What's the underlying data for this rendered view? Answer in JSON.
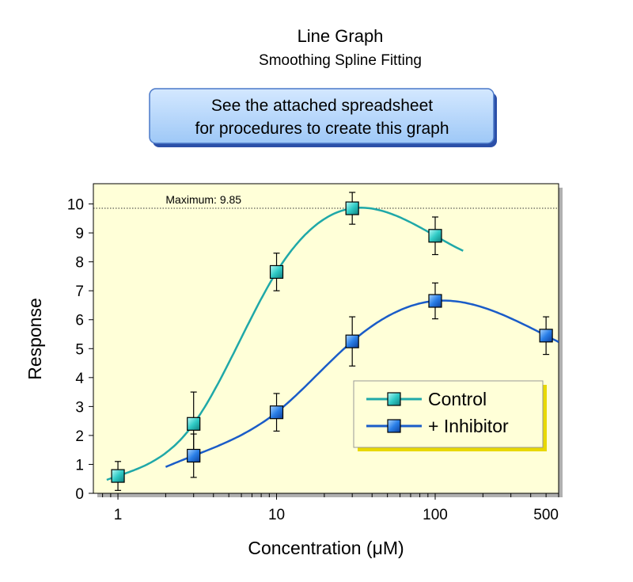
{
  "chart_data": {
    "type": "line",
    "title": "Line Graph",
    "subtitle": "Smoothing Spline Fitting",
    "note_lines": [
      "See the attached spreadsheet",
      "for procedures to create this graph"
    ],
    "xlabel": "Concentration (μM)",
    "ylabel": "Response",
    "x_scale": "log",
    "xlim": [
      0.7,
      600
    ],
    "ylim": [
      0,
      10.7
    ],
    "x_ticks": [
      1,
      10,
      100,
      500
    ],
    "y_ticks": [
      0,
      1,
      2,
      3,
      4,
      5,
      6,
      7,
      8,
      9,
      10
    ],
    "grid": false,
    "reference_line": {
      "y": 9.85,
      "label": "Maximum: 9.85"
    },
    "legend_position": "bottom-right",
    "series": [
      {
        "name": "Control",
        "color": "#2ec4c0",
        "line_color": "#1fa8a8",
        "x": [
          1,
          3,
          10,
          30,
          100
        ],
        "y": [
          0.6,
          2.4,
          7.65,
          9.85,
          8.9
        ],
        "error": [
          0.5,
          1.1,
          0.65,
          0.55,
          0.65
        ],
        "fit_range": [
          0.85,
          150
        ]
      },
      {
        "name": "+ Inhibitor",
        "color": "#1a6fe0",
        "line_color": "#1a5cc8",
        "x": [
          3,
          10,
          30,
          100,
          500
        ],
        "y": [
          1.3,
          2.8,
          5.25,
          6.65,
          5.45
        ],
        "error": [
          0.75,
          0.65,
          0.85,
          0.62,
          0.65
        ],
        "fit_range": [
          2,
          600
        ]
      }
    ]
  }
}
